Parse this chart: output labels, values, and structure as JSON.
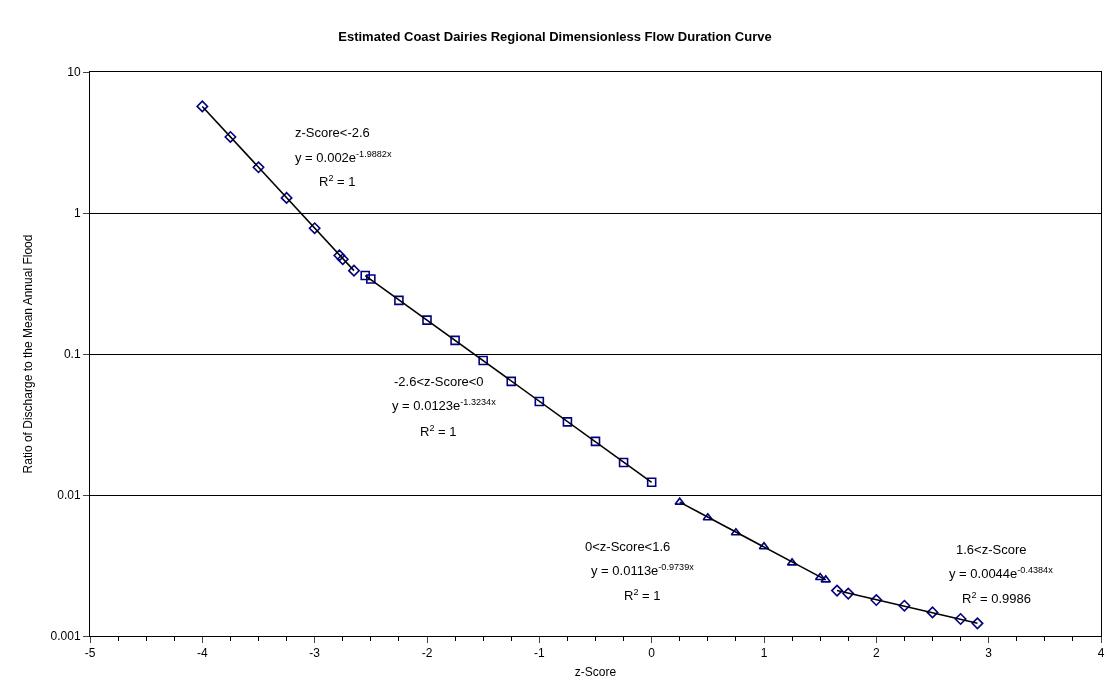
{
  "chart_data": {
    "type": "scatter",
    "title": "Estimated Coast Dairies Regional Dimensionless Flow Duration Curve",
    "xlabel": "z-Score",
    "ylabel": "Ratio of Discharge to the Mean Annual Flood",
    "log": "y",
    "grid": "y",
    "xlim": [
      -5,
      4
    ],
    "xticks": [
      -5,
      -4,
      -3,
      -2,
      -1,
      0,
      1,
      2,
      3,
      4
    ],
    "ylim": [
      0.001,
      10
    ],
    "yticks": [
      0.001,
      0.01,
      0.1,
      1,
      10
    ],
    "series": [
      {
        "marker": "diamond",
        "color": "#000080",
        "x": [
          -4.0,
          -3.75,
          -3.5,
          -3.25,
          -3.0,
          -2.78,
          -2.75,
          -2.65
        ],
        "values": [
          5.7,
          3.46,
          2.11,
          1.28,
          0.78,
          0.5,
          0.47,
          0.39
        ]
      },
      {
        "marker": "square",
        "color": "#000080",
        "x": [
          -2.55,
          -2.5,
          -2.25,
          -2.0,
          -1.75,
          -1.5,
          -1.25,
          -1.0,
          -0.75,
          -0.5,
          -0.25,
          0.0
        ],
        "values": [
          0.36,
          0.34,
          0.24,
          0.174,
          0.125,
          0.09,
          0.064,
          0.046,
          0.033,
          0.024,
          0.017,
          0.0123
        ]
      },
      {
        "marker": "triangle",
        "color": "#000080",
        "x": [
          0.25,
          0.5,
          0.75,
          1.0,
          1.25,
          1.5,
          1.55
        ],
        "values": [
          0.0089,
          0.0069,
          0.0054,
          0.0043,
          0.0033,
          0.0026,
          0.0025
        ]
      },
      {
        "marker": "diamond",
        "color": "#000080",
        "x": [
          1.65,
          1.75,
          2.0,
          2.25,
          2.5,
          2.75,
          2.9
        ],
        "values": [
          0.0021,
          0.002,
          0.0018,
          0.00164,
          0.00147,
          0.00132,
          0.00123
        ]
      },
      {
        "type": "line",
        "color": "#000000",
        "x": [
          -4.0,
          -2.65
        ],
        "values": [
          5.7,
          0.39
        ]
      },
      {
        "type": "line",
        "color": "#000000",
        "x": [
          -2.55,
          0.0
        ],
        "values": [
          0.36,
          0.0123
        ]
      },
      {
        "type": "line",
        "color": "#000000",
        "x": [
          0.25,
          1.55
        ],
        "values": [
          0.0089,
          0.0025
        ]
      },
      {
        "type": "line",
        "color": "#000000",
        "x": [
          1.65,
          2.9
        ],
        "values": [
          0.0021,
          0.00123
        ]
      }
    ],
    "annotations": [
      "z-Score<-2.6",
      "y = 0.002e$^{-1.9882x}$",
      "R$^{2}$ = 1",
      "-2.6<z-Score<0",
      "y = 0.0123e$^{-1.3234x}$",
      "R$^{2}$ = 1",
      "0<z-Score<1.6",
      "y = 0.0113e$^{-0.9739x}$",
      "R$^{2}$ = 1",
      "1.6<z-Score",
      "y = 0.0044e$^{-0.4384x}$",
      "R$^{2}$ = 0.9986"
    ]
  }
}
